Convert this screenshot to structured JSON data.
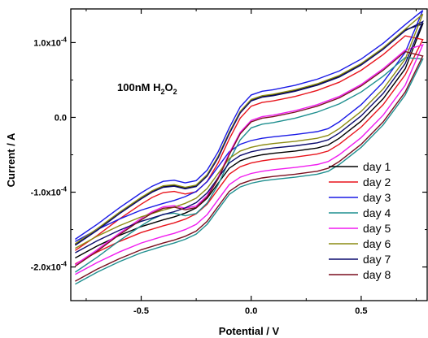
{
  "chart_data": {
    "type": "line",
    "title": "",
    "xlabel": "Potential / V",
    "ylabel": "Current / A",
    "annotation": {
      "main": "100nM H",
      "sub1": "2",
      "mid": "O",
      "sub2": "2"
    },
    "xlim": [
      -0.82,
      0.8
    ],
    "ylim": [
      -0.000245,
      0.000145
    ],
    "x_ticks": [
      {
        "value": -0.5,
        "label": "-0.5"
      },
      {
        "value": 0.0,
        "label": "0.0"
      },
      {
        "value": 0.5,
        "label": "0.5"
      }
    ],
    "y_ticks": [
      {
        "value": 0.0001,
        "label": "1.0x10",
        "exp": "-4"
      },
      {
        "value": 0.0,
        "label": "0.0",
        "exp": ""
      },
      {
        "value": -0.0001,
        "label": "-1.0x10",
        "exp": "-4"
      },
      {
        "value": -0.0002,
        "label": "-2.0x10",
        "exp": "-4"
      }
    ],
    "grid": false,
    "legend_position": "bottom-right",
    "forward_template": {
      "x": [
        -0.8,
        -0.7,
        -0.6,
        -0.5,
        -0.45,
        -0.4,
        -0.35,
        -0.3,
        -0.25,
        -0.2,
        -0.15,
        -0.1,
        -0.05,
        0.0,
        0.05,
        0.1,
        0.2,
        0.3,
        0.4,
        0.5,
        0.6,
        0.7,
        0.78
      ],
      "y": [
        -0.000175,
        -0.000155,
        -0.000133,
        -0.000113,
        -0.000104,
        -9.75e-05,
        -9.6e-05,
        -9.95e-05,
        -9.65e-05,
        -8.25e-05,
        -5.8e-05,
        -2.6e-05,
        2e-06,
        1.8e-05,
        2.3e-05,
        2.5e-05,
        3.1e-05,
        3.9e-05,
        5e-05,
        6.6e-05,
        8.7e-05,
        0.000112,
        0.000135
      ]
    },
    "reverse_template": {
      "x": [
        0.78,
        0.7,
        0.6,
        0.5,
        0.4,
        0.35,
        0.3,
        0.2,
        0.1,
        0.05,
        0.0,
        -0.05,
        -0.1,
        -0.15,
        -0.2,
        -0.25,
        -0.3,
        -0.35,
        -0.4,
        -0.5,
        -0.6,
        -0.7,
        -0.8
      ],
      "y": [
        0.000135,
        6.5e-05,
        2.5e-05,
        -5e-06,
        -2.8e-05,
        -3.7e-05,
        -4.1e-05,
        -4.5e-05,
        -4.8e-05,
        -5e-05,
        -5.3e-05,
        -5.8e-05,
        -6.8e-05,
        -8.8e-05,
        -0.000108,
        -0.000121,
        -0.000128,
        -0.000133,
        -0.000137,
        -0.000146,
        -0.000158,
        -0.000172,
        -0.000188
      ]
    },
    "series": [
      {
        "name": "day 1",
        "color": "#000000",
        "offset_fwd": 5e-06,
        "offset_rev": 0.0,
        "end_y": 0.000125
      },
      {
        "name": "day 2",
        "color": "#e8141c",
        "offset_fwd": -3e-06,
        "offset_rev": -8e-06,
        "end_y": 0.000104
      },
      {
        "name": "day 3",
        "color": "#1a1ae6",
        "offset_fwd": 1.2e-05,
        "offset_rev": 2.2e-05,
        "end_y": 0.000143
      },
      {
        "name": "day 4",
        "color": "#1f8f8f",
        "offset_fwd": -3.2e-05,
        "offset_rev": -3.5e-05,
        "end_y": 7.8e-05
      },
      {
        "name": "day 5",
        "color": "#f01cf0",
        "offset_fwd": -2.2e-05,
        "offset_rev": -2.2e-05,
        "end_y": 9.7e-05
      },
      {
        "name": "day 6",
        "color": "#8c8c14",
        "offset_fwd": 6e-06,
        "offset_rev": 1.3e-05,
        "end_y": 0.000138
      },
      {
        "name": "day 7",
        "color": "#0c0c6e",
        "offset_fwd": 4e-06,
        "offset_rev": 7e-06,
        "end_y": 0.000128
      },
      {
        "name": "day 8",
        "color": "#7a0f1f",
        "offset_fwd": -2.4e-05,
        "offset_rev": -3.1e-05,
        "end_y": 8.2e-05
      }
    ]
  }
}
